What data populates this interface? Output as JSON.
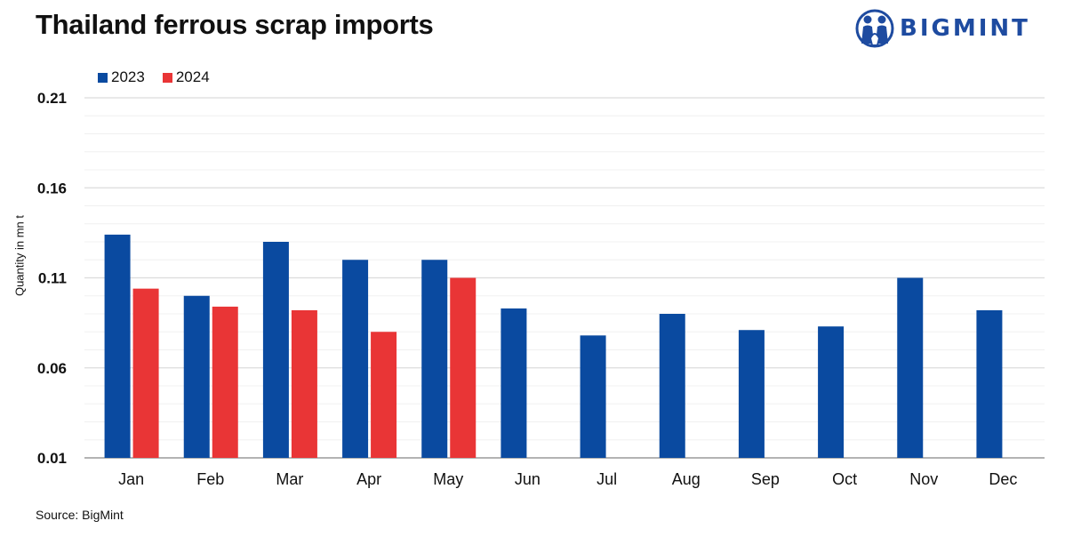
{
  "header": {
    "title": "Thailand ferrous scrap imports",
    "logo_text": "BIGMINT",
    "logo_icon": "bigmint-people-icon"
  },
  "footer": {
    "source": "Source: BigMint"
  },
  "colors": {
    "series_2023": "#0a4aa0",
    "series_2024": "#e93536",
    "grid": "#dcdcdc"
  },
  "chart_data": {
    "type": "bar",
    "title": "Thailand ferrous scrap imports",
    "xlabel": "",
    "ylabel": "Quantity in mn t",
    "categories": [
      "Jan",
      "Feb",
      "Mar",
      "Apr",
      "May",
      "Jun",
      "Jul",
      "Aug",
      "Sep",
      "Oct",
      "Nov",
      "Dec"
    ],
    "series": [
      {
        "name": "2023",
        "values": [
          0.134,
          0.1,
          0.13,
          0.12,
          0.12,
          0.093,
          0.078,
          0.09,
          0.081,
          0.083,
          0.11,
          0.092
        ]
      },
      {
        "name": "2024",
        "values": [
          0.104,
          0.094,
          0.092,
          0.08,
          0.11,
          null,
          null,
          null,
          null,
          null,
          null,
          null
        ]
      }
    ],
    "ylim": [
      0.01,
      0.21
    ],
    "yticks": [
      0.01,
      0.06,
      0.11,
      0.16,
      0.21
    ],
    "ytick_labels": [
      "0.01",
      "0.06",
      "0.11",
      "0.16",
      "0.21"
    ],
    "minor_grid_step": 0.01,
    "grid": true,
    "legend": "top-left"
  }
}
